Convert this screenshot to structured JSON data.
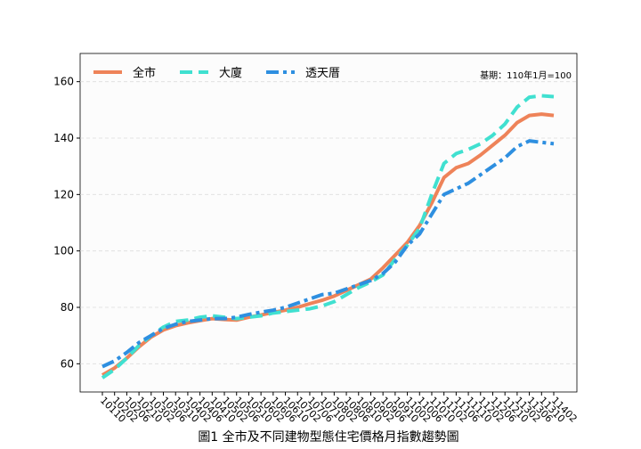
{
  "chart_data": {
    "type": "line",
    "title": "圖1 全市及不同建物型態住宅價格月指數趨勢圖",
    "annotation": "基期：110年1月=100",
    "categories": [
      "10110",
      "10202",
      "10206",
      "10210",
      "10302",
      "10306",
      "10310",
      "10402",
      "10406",
      "10410",
      "10502",
      "10506",
      "10510",
      "10602",
      "10606",
      "10610",
      "10702",
      "10706",
      "10710",
      "10802",
      "10806",
      "10810",
      "10902",
      "10906",
      "10910",
      "11002",
      "11006",
      "11010",
      "11102",
      "11106",
      "11110",
      "11202",
      "11206",
      "11210",
      "11302",
      "11306",
      "11310",
      "11402"
    ],
    "series": [
      {
        "name": "全市",
        "color": "#ee8359",
        "linestyle": "solid",
        "values": [
          56,
          58.5,
          62,
          66,
          69.5,
          72,
          73.5,
          74.5,
          75.3,
          76,
          75.7,
          75.5,
          76.5,
          77.3,
          78.2,
          79,
          80,
          81.3,
          82.5,
          84,
          86,
          88,
          90,
          94,
          98.5,
          103,
          109,
          117,
          126,
          129.5,
          131,
          134,
          137.5,
          141,
          145.5,
          148,
          148.5,
          148
        ]
      },
      {
        "name": "大廈",
        "color": "#40e0d0",
        "linestyle": "dashed",
        "values": [
          55,
          58,
          62,
          66.5,
          70,
          73,
          75,
          75.5,
          76.5,
          77,
          76.5,
          76,
          76.5,
          77,
          78,
          78.5,
          79,
          79.5,
          80.5,
          82,
          84.5,
          87,
          89,
          91.5,
          97,
          102,
          108,
          120,
          131,
          134.5,
          136,
          138,
          141,
          145,
          151,
          154.5,
          155,
          154.7
        ]
      },
      {
        "name": "透天厝",
        "color": "#2e8fe0",
        "linestyle": "dashdot",
        "values": [
          59,
          61,
          64,
          67.5,
          70,
          72.5,
          74,
          75,
          75.5,
          76,
          76,
          76.5,
          77.5,
          78.3,
          79,
          80,
          81.5,
          83,
          84.5,
          85,
          86.5,
          88,
          89.5,
          92,
          96,
          102,
          106,
          113,
          120,
          122,
          124,
          127,
          130,
          133,
          137,
          139,
          138.5,
          138
        ]
      }
    ],
    "ylim": [
      50,
      170
    ],
    "yticks": [
      60,
      80,
      100,
      120,
      140,
      160
    ],
    "grid": true,
    "legend": "upper left"
  }
}
